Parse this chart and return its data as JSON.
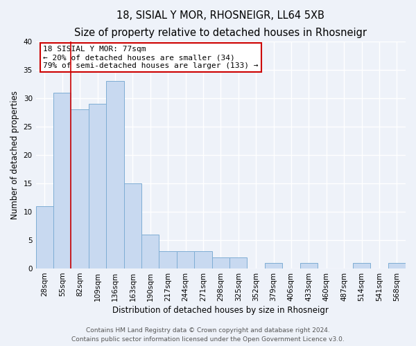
{
  "title": "18, SISIAL Y MOR, RHOSNEIGR, LL64 5XB",
  "subtitle": "Size of property relative to detached houses in Rhosneigr",
  "bar_values": [
    11,
    31,
    28,
    29,
    33,
    15,
    6,
    3,
    3,
    3,
    2,
    2,
    0,
    1,
    0,
    1,
    0,
    0,
    1,
    0,
    1
  ],
  "bin_labels": [
    "28sqm",
    "55sqm",
    "82sqm",
    "109sqm",
    "136sqm",
    "163sqm",
    "190sqm",
    "217sqm",
    "244sqm",
    "271sqm",
    "298sqm",
    "325sqm",
    "352sqm",
    "379sqm",
    "406sqm",
    "433sqm",
    "460sqm",
    "487sqm",
    "514sqm",
    "541sqm",
    "568sqm"
  ],
  "bar_color": "#c8d9f0",
  "bar_edge_color": "#7eadd4",
  "bar_edge_width": 0.7,
  "vline_color": "#cc0000",
  "vline_x_index": 1.5,
  "ylabel": "Number of detached properties",
  "xlabel": "Distribution of detached houses by size in Rhosneigr",
  "ylim": [
    0,
    40
  ],
  "yticks": [
    0,
    5,
    10,
    15,
    20,
    25,
    30,
    35,
    40
  ],
  "annotation_title": "18 SISIAL Y MOR: 77sqm",
  "annotation_line1": "← 20% of detached houses are smaller (34)",
  "annotation_line2": "79% of semi-detached houses are larger (133) →",
  "annotation_box_color": "#ffffff",
  "annotation_box_edgecolor": "#cc0000",
  "footer_line1": "Contains HM Land Registry data © Crown copyright and database right 2024.",
  "footer_line2": "Contains public sector information licensed under the Open Government Licence v3.0.",
  "background_color": "#eef2f9",
  "grid_color": "#ffffff",
  "title_fontsize": 10.5,
  "subtitle_fontsize": 9.5,
  "axis_label_fontsize": 8.5,
  "tick_fontsize": 7.5,
  "annotation_fontsize": 8,
  "footer_fontsize": 6.5
}
